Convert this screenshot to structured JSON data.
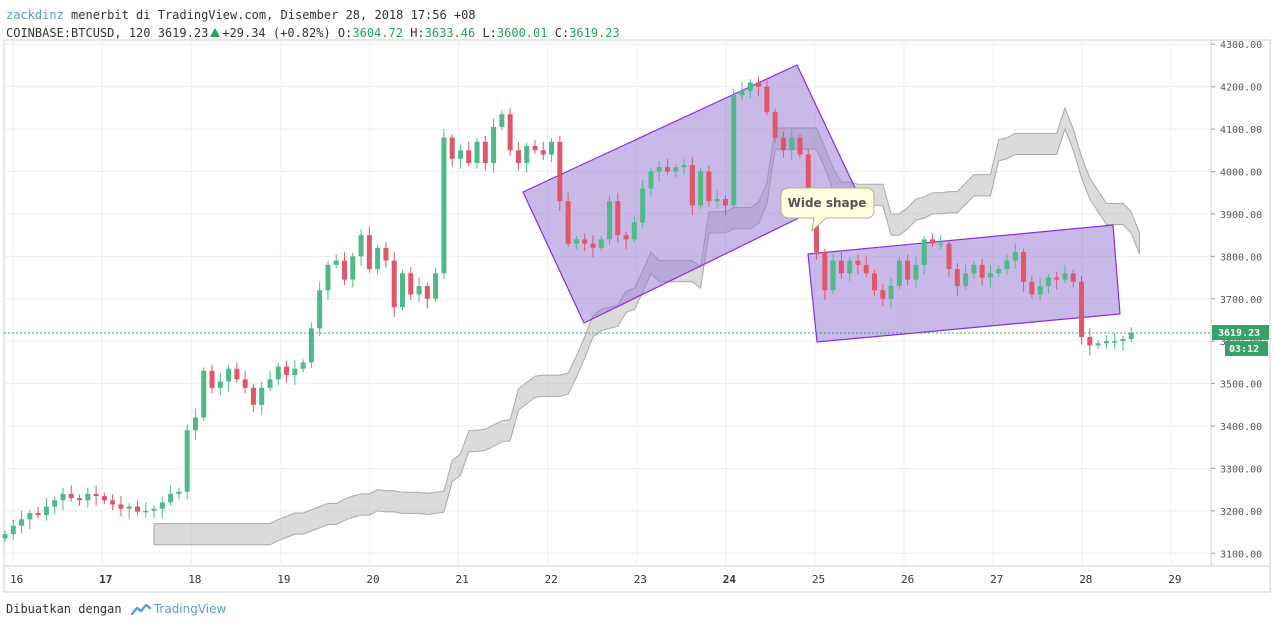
{
  "header": {
    "author": "zackdinz",
    "published_text": "menerbit di TradingView.com, Disember 28, 2018 17:56 +08",
    "symbol": "COINBASE:BTCUSD, 120",
    "last": "3619.23",
    "change": "+29.34 (+0.82%)",
    "open_label": "O:",
    "open": "3604.72",
    "high_label": "H:",
    "high": "3633.46",
    "low_label": "L:",
    "low": "3600.01",
    "close_label": "C:",
    "close": "3619.23"
  },
  "footer": {
    "created_with": "Dibuatkan dengan",
    "brand": "TradingView"
  },
  "colors": {
    "up": "#4fb988",
    "down": "#e0566b",
    "cloud": "#bdbdbd",
    "shape": "#9a7fd6",
    "price_line": "#35a367"
  },
  "chart_data": {
    "type": "candlestick",
    "ylim": [
      3070,
      4310
    ],
    "y_ticks": [
      "4300.00",
      "4200.00",
      "4100.00",
      "4000.00",
      "3900.00",
      "3800.00",
      "3700.00",
      "3600.00",
      "3500.00",
      "3400.00",
      "3300.00",
      "3200.00",
      "3100.00"
    ],
    "x_ticks": [
      {
        "label": "16",
        "pos": 0.0,
        "bold": false
      },
      {
        "label": "17",
        "pos": 1.0,
        "bold": true
      },
      {
        "label": "18",
        "pos": 2.0,
        "bold": false
      },
      {
        "label": "19",
        "pos": 3.0,
        "bold": false
      },
      {
        "label": "20",
        "pos": 4.0,
        "bold": false
      },
      {
        "label": "21",
        "pos": 5.0,
        "bold": false
      },
      {
        "label": "22",
        "pos": 6.0,
        "bold": false
      },
      {
        "label": "23",
        "pos": 7.0,
        "bold": false
      },
      {
        "label": "24",
        "pos": 8.0,
        "bold": true
      },
      {
        "label": "25",
        "pos": 9.0,
        "bold": false
      },
      {
        "label": "26",
        "pos": 10.0,
        "bold": false
      },
      {
        "label": "27",
        "pos": 11.0,
        "bold": false
      },
      {
        "label": "28",
        "pos": 12.0,
        "bold": false
      },
      {
        "label": "29",
        "pos": 13.0,
        "bold": false
      }
    ],
    "current_price": "3619.23",
    "countdown": "03:12",
    "annotation": "Wide shape",
    "closes": [
      3145,
      3165,
      3180,
      3195,
      3190,
      3210,
      3225,
      3240,
      3230,
      3225,
      3240,
      3235,
      3225,
      3215,
      3205,
      3210,
      3198,
      3200,
      3205,
      3220,
      3240,
      3245,
      3390,
      3420,
      3530,
      3490,
      3505,
      3535,
      3510,
      3490,
      3450,
      3490,
      3510,
      3540,
      3520,
      3535,
      3550,
      3630,
      3720,
      3780,
      3790,
      3745,
      3800,
      3850,
      3770,
      3820,
      3790,
      3680,
      3760,
      3710,
      3730,
      3700,
      3760,
      4080,
      4030,
      4050,
      4020,
      4070,
      4020,
      4105,
      4135,
      4050,
      4020,
      4060,
      4050,
      4040,
      4070,
      3930,
      3830,
      3840,
      3830,
      3820,
      3840,
      3930,
      3850,
      3840,
      3880,
      3960,
      4000,
      4010,
      4000,
      4010,
      4015,
      3920,
      4000,
      3930,
      3935,
      3920,
      4180,
      4190,
      4210,
      4200,
      4140,
      4080,
      4050,
      4080,
      4040,
      3940,
      3810,
      3720,
      3790,
      3760,
      3790,
      3780,
      3760,
      3720,
      3700,
      3730,
      3790,
      3745,
      3780,
      3840,
      3830,
      3830,
      3770,
      3730,
      3760,
      3780,
      3750,
      3760,
      3770,
      3790,
      3810,
      3740,
      3710,
      3730,
      3750,
      3745,
      3760,
      3740,
      3610,
      3590,
      3595,
      3600,
      3600,
      3605,
      3619
    ]
  }
}
